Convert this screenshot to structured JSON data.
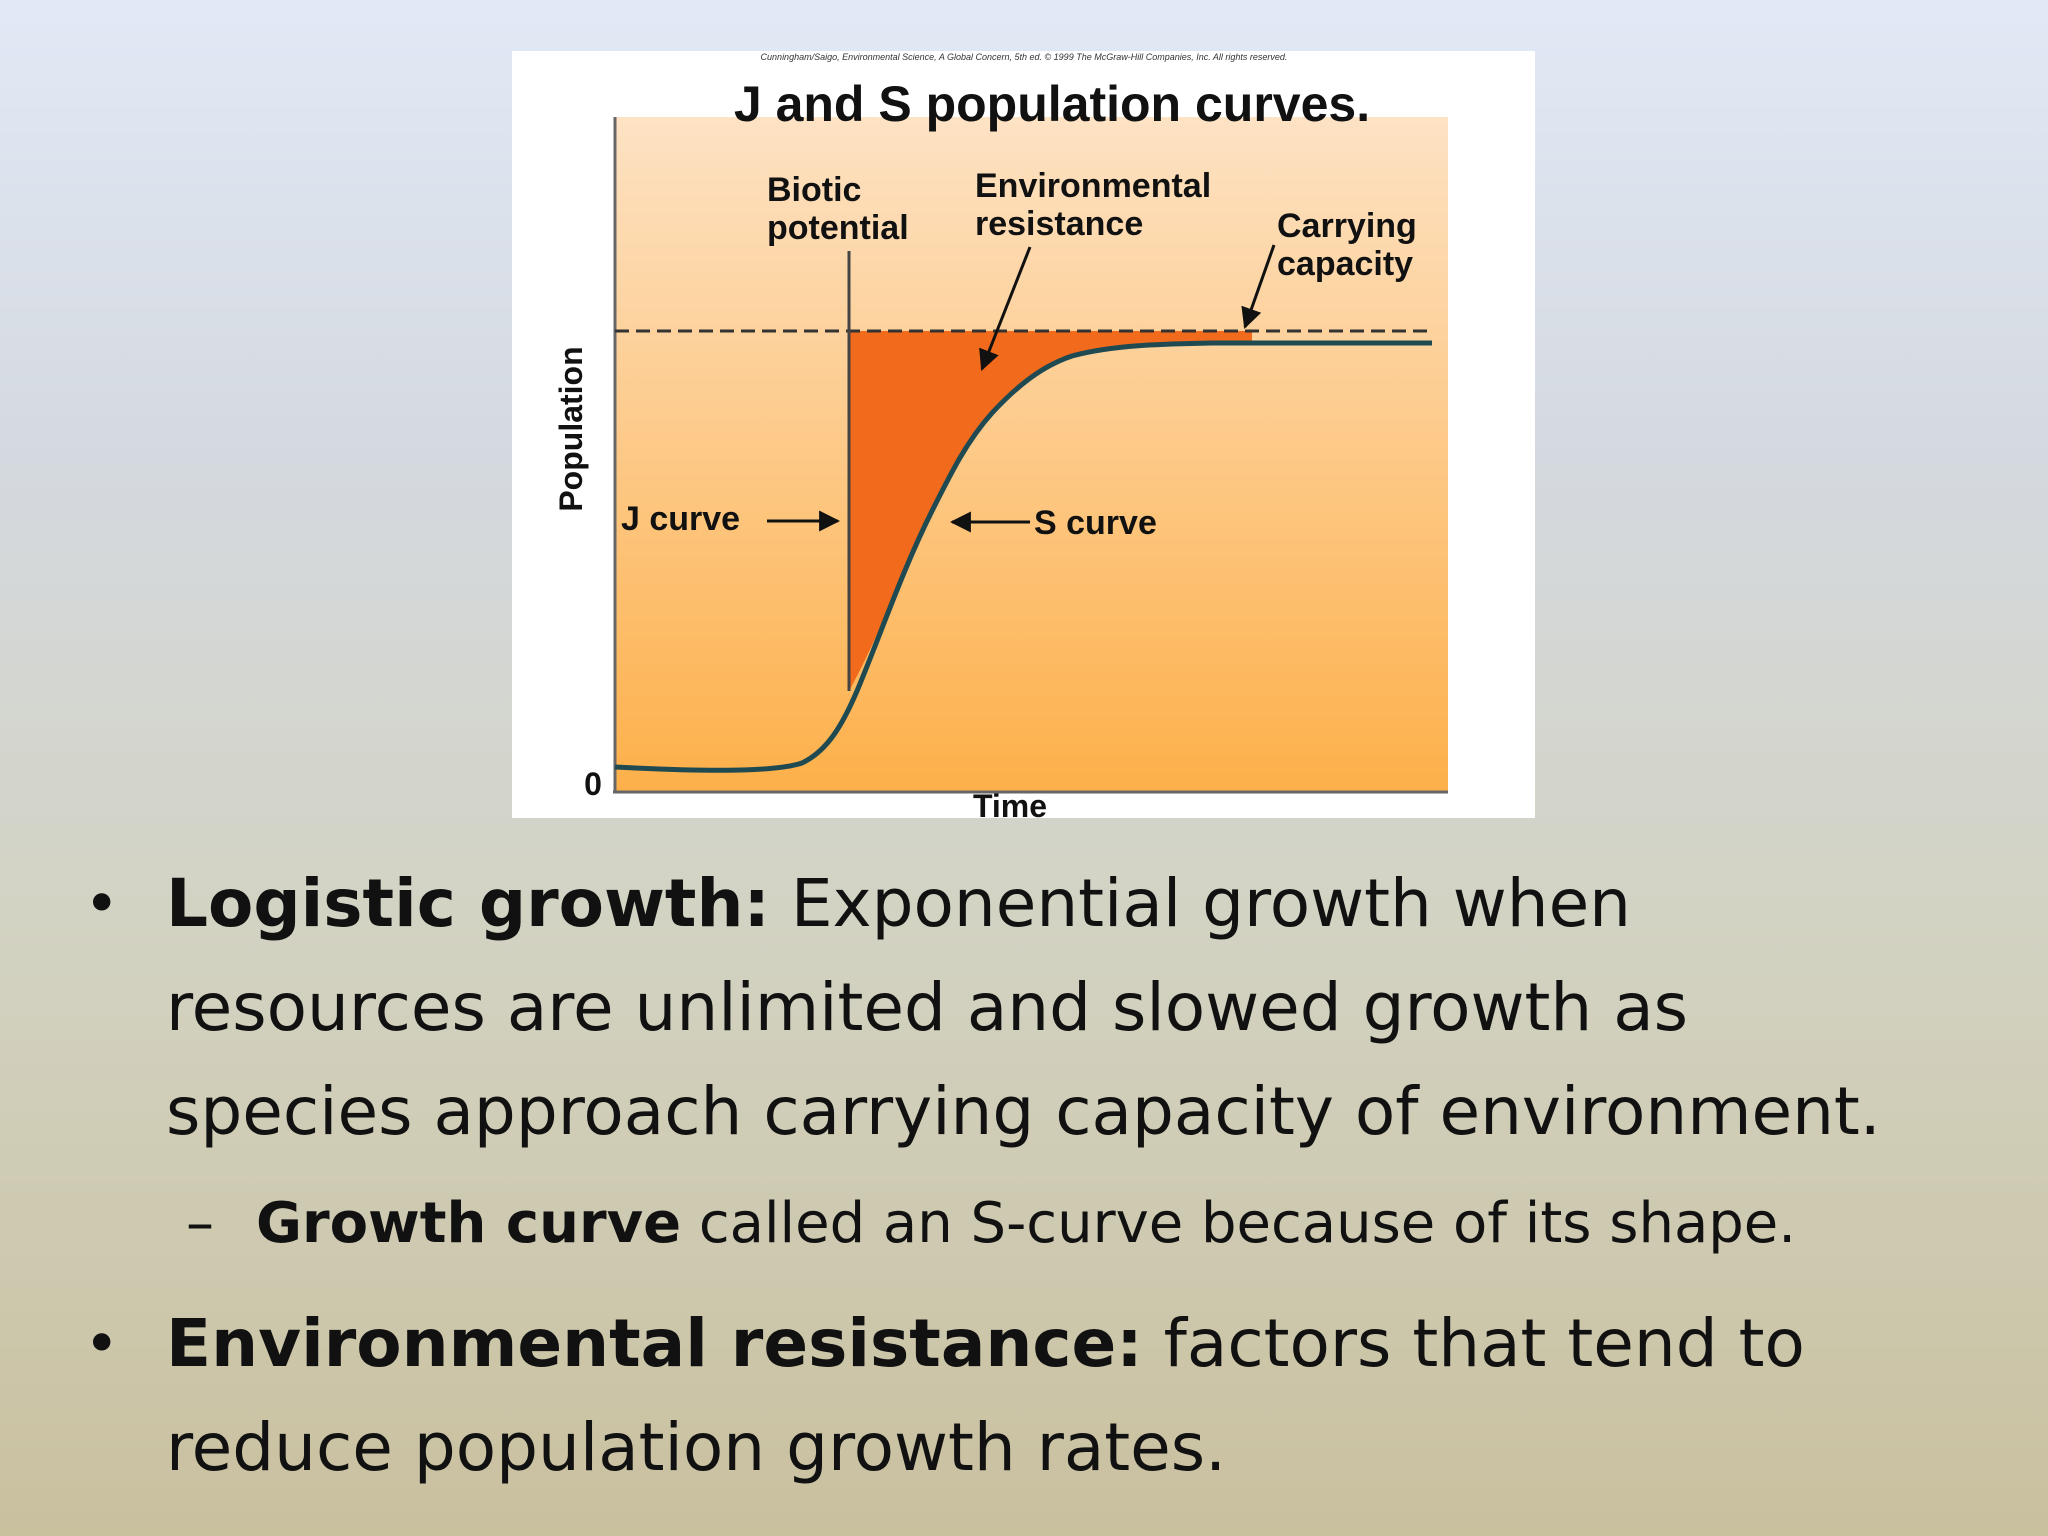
{
  "figure": {
    "credit": "Cunningham/Saigo, Environmental Science, A Global Concern, 5th ed. © 1999 The McGraw-Hill Companies, Inc. All rights reserved.",
    "title": "J and S population curves.",
    "y_axis_label": "Population",
    "x_axis_label": "Time",
    "origin_label": "0",
    "annotations": {
      "biotic_potential": [
        "Biotic",
        "potential"
      ],
      "environmental_resistance": [
        "Environmental",
        "resistance"
      ],
      "carrying_capacity": [
        "Carrying",
        "capacity"
      ],
      "j_curve": "J curve",
      "s_curve": "S curve"
    },
    "colors": {
      "background_top": "#fde2c4",
      "background_bottom": "#fdb04a",
      "resistance_fill": "#f26a1b",
      "curve": "#1f4a52"
    }
  },
  "bullets": [
    {
      "bold": "Logistic growth:",
      "lines": [
        " Exponential growth when",
        "resources are unlimited and slowed growth as",
        "species approach carrying capacity of environment."
      ]
    },
    {
      "bold": "Environmental resistance:",
      "lines": [
        " factors that tend to",
        "reduce population growth rates."
      ]
    }
  ],
  "sub_bullet": {
    "bold": "Growth curve",
    "text": " called an S-curve because of its shape."
  }
}
